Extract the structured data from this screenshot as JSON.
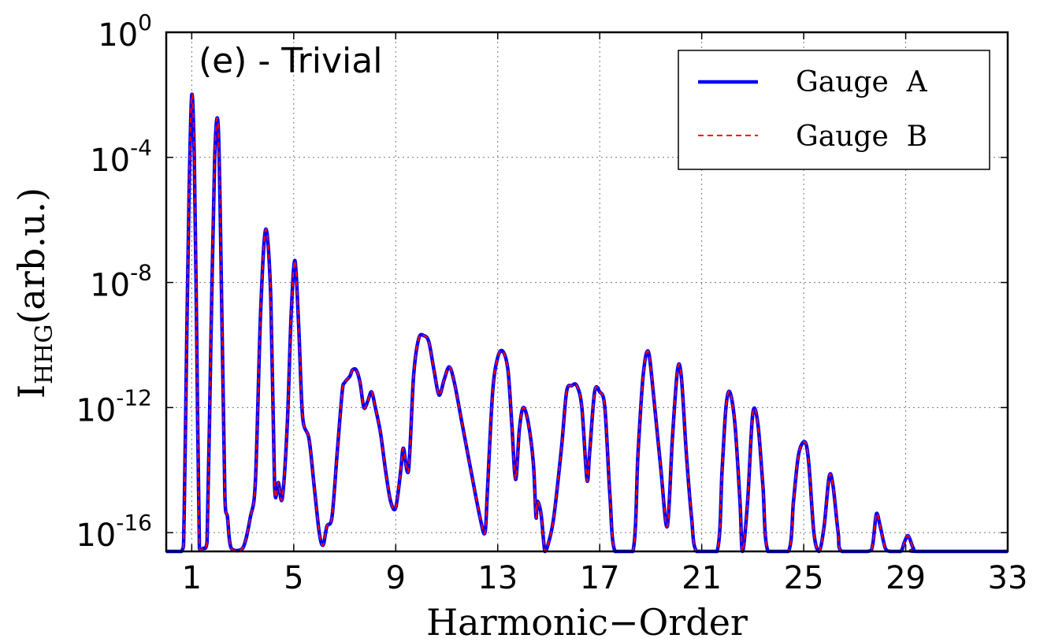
{
  "chart_data": {
    "type": "line",
    "panel_label": "(e) - Trivial",
    "xlabel": "Harmonic−Order",
    "ylabel": {
      "base": "I",
      "sub": "HHG",
      "rest": "(arb.u.)"
    },
    "xlim": [
      0,
      33
    ],
    "ylim_log10": [
      -16.6,
      0
    ],
    "yscale": "log",
    "grid": true,
    "legend_position": "top-right",
    "x_ticks": [
      1,
      5,
      9,
      13,
      17,
      21,
      25,
      29,
      33
    ],
    "x_tick_labels": [
      "1",
      "5",
      "9",
      "13",
      "17",
      "21",
      "25",
      "29",
      "33"
    ],
    "y_ticks": [
      {
        "value_log10": 0,
        "base": "10",
        "exp": "0"
      },
      {
        "value_log10": -4,
        "base": "10",
        "exp": "-4"
      },
      {
        "value_log10": -8,
        "base": "10",
        "exp": "-8"
      },
      {
        "value_log10": -12,
        "base": "10",
        "exp": "-12"
      },
      {
        "value_log10": -16,
        "base": "10",
        "exp": "-16"
      }
    ],
    "colors": {
      "gauge_a": "#0000ff",
      "gauge_b": "#ff0000"
    },
    "series": [
      {
        "name": "Gauge  A",
        "style": "solid"
      },
      {
        "name": "Gauge  B",
        "style": "dashed"
      }
    ],
    "curve_log10": [
      [
        0,
        -16.6
      ],
      [
        0.6,
        -16.6
      ],
      [
        0.7,
        -15.5
      ],
      [
        0.8,
        -10
      ],
      [
        0.9,
        -5
      ],
      [
        1.0,
        -2.0
      ],
      [
        1.1,
        -4.0
      ],
      [
        1.2,
        -10
      ],
      [
        1.3,
        -16.5
      ],
      [
        1.45,
        -16.5
      ],
      [
        1.6,
        -16.3
      ],
      [
        1.75,
        -10
      ],
      [
        1.9,
        -4.0
      ],
      [
        2.05,
        -3.2
      ],
      [
        2.2,
        -10
      ],
      [
        2.3,
        -14.8
      ],
      [
        2.4,
        -15.5
      ],
      [
        2.55,
        -16.5
      ],
      [
        3.0,
        -16.5
      ],
      [
        3.3,
        -15.5
      ],
      [
        3.5,
        -14.3
      ],
      [
        3.7,
        -9
      ],
      [
        3.9,
        -6.3
      ],
      [
        4.1,
        -8.5
      ],
      [
        4.25,
        -14.5
      ],
      [
        4.4,
        -14.4
      ],
      [
        4.55,
        -14.9
      ],
      [
        4.75,
        -12.5
      ],
      [
        4.9,
        -9
      ],
      [
        5.05,
        -7.3
      ],
      [
        5.2,
        -9.5
      ],
      [
        5.35,
        -12.3
      ],
      [
        5.6,
        -13
      ],
      [
        5.8,
        -14.5
      ],
      [
        6.0,
        -16.0
      ],
      [
        6.15,
        -16.4
      ],
      [
        6.3,
        -15.8
      ],
      [
        6.5,
        -15.5
      ],
      [
        6.7,
        -13.5
      ],
      [
        6.9,
        -11.5
      ],
      [
        7.0,
        -11.2
      ],
      [
        7.2,
        -11.0
      ],
      [
        7.3,
        -10.8
      ],
      [
        7.45,
        -10.8
      ],
      [
        7.6,
        -11.2
      ],
      [
        7.75,
        -12.0
      ],
      [
        7.9,
        -11.8
      ],
      [
        8.05,
        -11.5
      ],
      [
        8.2,
        -12.0
      ],
      [
        8.4,
        -12.8
      ],
      [
        8.6,
        -14.0
      ],
      [
        8.8,
        -15.0
      ],
      [
        9.0,
        -15.2
      ],
      [
        9.2,
        -14.0
      ],
      [
        9.3,
        -13.3
      ],
      [
        9.5,
        -14.0
      ],
      [
        9.7,
        -11.0
      ],
      [
        9.9,
        -9.8
      ],
      [
        10.1,
        -9.7
      ],
      [
        10.3,
        -9.9
      ],
      [
        10.5,
        -10.8
      ],
      [
        10.7,
        -11.6
      ],
      [
        10.9,
        -11.1
      ],
      [
        11.1,
        -10.7
      ],
      [
        11.3,
        -11.2
      ],
      [
        11.6,
        -12.5
      ],
      [
        11.9,
        -13.8
      ],
      [
        12.3,
        -15.5
      ],
      [
        12.5,
        -16.0
      ],
      [
        12.6,
        -14.6
      ],
      [
        12.8,
        -11.5
      ],
      [
        13.0,
        -10.4
      ],
      [
        13.2,
        -10.2
      ],
      [
        13.4,
        -10.8
      ],
      [
        13.55,
        -12.5
      ],
      [
        13.7,
        -14.3
      ],
      [
        13.85,
        -12.7
      ],
      [
        14.0,
        -12.0
      ],
      [
        14.2,
        -12.5
      ],
      [
        14.4,
        -13.8
      ],
      [
        14.5,
        -15.5
      ],
      [
        14.55,
        -15.0
      ],
      [
        14.7,
        -15.4
      ],
      [
        14.85,
        -16.6
      ],
      [
        15.0,
        -16.3
      ],
      [
        15.2,
        -15.5
      ],
      [
        15.5,
        -13.3
      ],
      [
        15.7,
        -11.5
      ],
      [
        15.9,
        -11.3
      ],
      [
        16.1,
        -11.3
      ],
      [
        16.3,
        -12.0
      ],
      [
        16.5,
        -14.3
      ],
      [
        16.6,
        -13.5
      ],
      [
        16.8,
        -11.5
      ],
      [
        17.0,
        -11.5
      ],
      [
        17.2,
        -12.0
      ],
      [
        17.4,
        -14.8
      ],
      [
        17.6,
        -16.6
      ],
      [
        18.3,
        -16.6
      ],
      [
        18.5,
        -13.5
      ],
      [
        18.7,
        -11.0
      ],
      [
        18.9,
        -10.2
      ],
      [
        19.1,
        -11.5
      ],
      [
        19.4,
        -14.0
      ],
      [
        19.65,
        -15.8
      ],
      [
        19.85,
        -13.0
      ],
      [
        20.05,
        -10.8
      ],
      [
        20.2,
        -11.0
      ],
      [
        20.4,
        -13.5
      ],
      [
        20.6,
        -15.5
      ],
      [
        20.8,
        -16.6
      ],
      [
        21.6,
        -16.6
      ],
      [
        21.8,
        -14.0
      ],
      [
        21.95,
        -12.0
      ],
      [
        22.1,
        -11.5
      ],
      [
        22.3,
        -12.5
      ],
      [
        22.5,
        -15.0
      ],
      [
        22.6,
        -16.6
      ],
      [
        22.8,
        -15.0
      ],
      [
        23.0,
        -12.2
      ],
      [
        23.2,
        -12.5
      ],
      [
        23.4,
        -14.5
      ],
      [
        23.6,
        -16.6
      ],
      [
        24.4,
        -16.6
      ],
      [
        24.6,
        -15.0
      ],
      [
        24.8,
        -13.5
      ],
      [
        25.05,
        -13.1
      ],
      [
        25.2,
        -13.8
      ],
      [
        25.4,
        -16.0
      ],
      [
        25.6,
        -16.6
      ],
      [
        25.8,
        -15.8
      ],
      [
        26.0,
        -14.2
      ],
      [
        26.15,
        -14.5
      ],
      [
        26.35,
        -16.0
      ],
      [
        26.5,
        -16.6
      ],
      [
        27.5,
        -16.6
      ],
      [
        27.7,
        -16.4
      ],
      [
        27.85,
        -15.4
      ],
      [
        28.0,
        -15.8
      ],
      [
        28.2,
        -16.5
      ],
      [
        28.4,
        -16.6
      ],
      [
        28.8,
        -16.6
      ],
      [
        28.95,
        -16.3
      ],
      [
        29.1,
        -16.1
      ],
      [
        29.3,
        -16.5
      ],
      [
        29.5,
        -16.6
      ],
      [
        33.0,
        -16.6
      ]
    ]
  }
}
